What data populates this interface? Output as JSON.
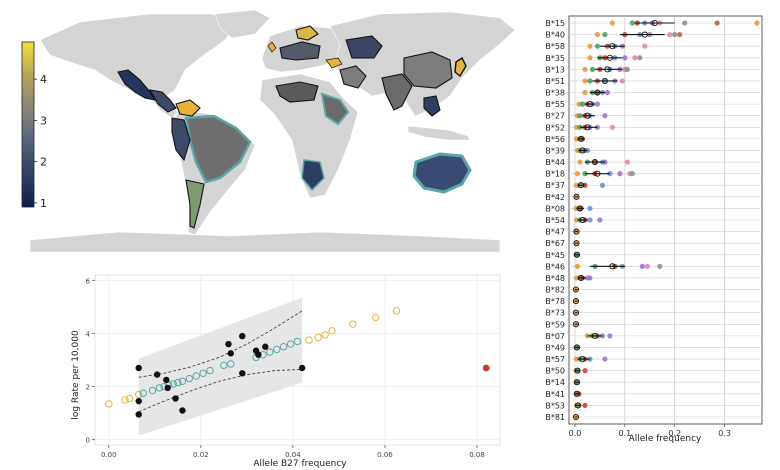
{
  "colors": {
    "land": "#d4d4d4",
    "cb_low": "#1d2f5e",
    "cb_mid": "#7d7d7d",
    "cb_high": "#f2d43c",
    "teal": "#5aa6a6",
    "orange": "#e8b23a",
    "red": "#c0392b",
    "band": "#e2e2e2"
  },
  "chart_data": [
    {
      "type": "choropleth",
      "title": "",
      "colorbar": {
        "ticks": [
          "1",
          "2",
          "3",
          "4"
        ],
        "range": [
          0.9,
          4.9
        ]
      }
    },
    {
      "type": "scatter",
      "title": "",
      "xlabel": "Allele B27 frequency",
      "ylabel": "log Rate per 10,000",
      "xlim": [
        -0.003,
        0.085
      ],
      "ylim": [
        -0.2,
        6.2
      ],
      "x_ticks": [
        0.0,
        0.02,
        0.04,
        0.06,
        0.08
      ],
      "x_tick_labels": [
        "0.00",
        "0.02",
        "0.04",
        "0.06",
        "0.08"
      ],
      "y_ticks": [
        0,
        2,
        4,
        6
      ],
      "y_tick_labels": [
        "0",
        "2",
        "4",
        "6"
      ],
      "observed": [
        [
          0.0065,
          2.7
        ],
        [
          0.0065,
          1.45
        ],
        [
          0.0065,
          0.95
        ],
        [
          0.0105,
          2.45
        ],
        [
          0.0125,
          2.25
        ],
        [
          0.0128,
          1.95
        ],
        [
          0.0145,
          1.55
        ],
        [
          0.016,
          1.1
        ],
        [
          0.026,
          3.6
        ],
        [
          0.0265,
          3.25
        ],
        [
          0.029,
          3.9
        ],
        [
          0.029,
          2.5
        ],
        [
          0.032,
          3.35
        ],
        [
          0.0325,
          3.2
        ],
        [
          0.034,
          3.5
        ],
        [
          0.042,
          2.7
        ]
      ],
      "predicted_in_range": [
        [
          0.0075,
          1.75
        ],
        [
          0.0095,
          1.85
        ],
        [
          0.011,
          1.95
        ],
        [
          0.012,
          2.0
        ],
        [
          0.013,
          2.05
        ],
        [
          0.014,
          2.1
        ],
        [
          0.015,
          2.15
        ],
        [
          0.016,
          2.2
        ],
        [
          0.0175,
          2.3
        ],
        [
          0.019,
          2.4
        ],
        [
          0.0205,
          2.5
        ],
        [
          0.022,
          2.6
        ],
        [
          0.025,
          2.8
        ],
        [
          0.0265,
          2.85
        ],
        [
          0.032,
          3.1
        ],
        [
          0.0335,
          3.2
        ],
        [
          0.035,
          3.3
        ],
        [
          0.0365,
          3.4
        ],
        [
          0.038,
          3.5
        ],
        [
          0.0395,
          3.6
        ],
        [
          0.041,
          3.7
        ]
      ],
      "predicted_out_range": [
        [
          0.0,
          1.35
        ],
        [
          0.0035,
          1.5
        ],
        [
          0.0045,
          1.55
        ],
        [
          0.0065,
          1.7
        ],
        [
          0.0435,
          3.75
        ],
        [
          0.0455,
          3.85
        ],
        [
          0.047,
          3.95
        ],
        [
          0.0485,
          4.1
        ],
        [
          0.053,
          4.35
        ],
        [
          0.058,
          4.6
        ],
        [
          0.0625,
          4.85
        ]
      ],
      "outlier": [
        0.082,
        2.7
      ],
      "fit_line": [
        [
          0.0065,
          1.7
        ],
        [
          0.042,
          3.7
        ]
      ],
      "ci_inner_upper": [
        [
          0.0065,
          2.35
        ],
        [
          0.012,
          2.5
        ],
        [
          0.018,
          2.75
        ],
        [
          0.024,
          3.1
        ],
        [
          0.03,
          3.6
        ],
        [
          0.036,
          4.2
        ],
        [
          0.042,
          4.85
        ]
      ],
      "ci_inner_lower": [
        [
          0.0065,
          1.05
        ],
        [
          0.012,
          1.45
        ],
        [
          0.018,
          1.85
        ],
        [
          0.024,
          2.2
        ],
        [
          0.03,
          2.45
        ],
        [
          0.036,
          2.6
        ],
        [
          0.042,
          2.65
        ]
      ],
      "band_upper": [
        [
          0.0065,
          3.05
        ],
        [
          0.042,
          5.35
        ]
      ],
      "band_lower": [
        [
          0.0065,
          0.15
        ],
        [
          0.042,
          2.15
        ]
      ]
    },
    {
      "type": "dot-range",
      "xlabel": "Allele frequency",
      "xlim": [
        -0.012,
        0.375
      ],
      "x_ticks": [
        0.0,
        0.1,
        0.2,
        0.3
      ],
      "x_tick_labels": [
        "0.0",
        "0.1",
        "0.2",
        "0.3"
      ],
      "palette": [
        "#e8923a",
        "#3aa05a",
        "#c0392b",
        "#5a8fd0",
        "#9b6cd0",
        "#e07fb0",
        "#8a8a8a",
        "#b05a3a"
      ],
      "rows": [
        {
          "label": "B*15",
          "mean": 0.16,
          "lo": 0.12,
          "hi": 0.2,
          "values": [
            0.075,
            0.115,
            0.125,
            0.14,
            0.155,
            0.17,
            0.22,
            0.285,
            0.365
          ]
        },
        {
          "label": "B*40",
          "mean": 0.14,
          "lo": 0.09,
          "hi": 0.18,
          "values": [
            0.045,
            0.06,
            0.1,
            0.13,
            0.15,
            0.19,
            0.2,
            0.21
          ]
        },
        {
          "label": "B*58",
          "mean": 0.075,
          "lo": 0.05,
          "hi": 0.1,
          "values": [
            0.03,
            0.045,
            0.065,
            0.08,
            0.095,
            0.14
          ]
        },
        {
          "label": "B*35",
          "mean": 0.07,
          "lo": 0.045,
          "hi": 0.095,
          "values": [
            0.03,
            0.05,
            0.06,
            0.08,
            0.1,
            0.12,
            0.13
          ]
        },
        {
          "label": "B*13",
          "mean": 0.065,
          "lo": 0.04,
          "hi": 0.095,
          "values": [
            0.02,
            0.035,
            0.05,
            0.07,
            0.09,
            0.1,
            0.105
          ]
        },
        {
          "label": "B*51",
          "mean": 0.06,
          "lo": 0.035,
          "hi": 0.085,
          "values": [
            0.02,
            0.03,
            0.045,
            0.06,
            0.08,
            0.095
          ]
        },
        {
          "label": "B*38",
          "mean": 0.045,
          "lo": 0.03,
          "hi": 0.06,
          "values": [
            0.02,
            0.035,
            0.045,
            0.055,
            0.065
          ]
        },
        {
          "label": "B*55",
          "mean": 0.03,
          "lo": 0.02,
          "hi": 0.04,
          "values": [
            0.008,
            0.015,
            0.025,
            0.035,
            0.045
          ]
        },
        {
          "label": "B*27",
          "mean": 0.025,
          "lo": 0.015,
          "hi": 0.04,
          "values": [
            0.005,
            0.01,
            0.02,
            0.03,
            0.06
          ]
        },
        {
          "label": "B*52",
          "mean": 0.025,
          "lo": 0.01,
          "hi": 0.045,
          "values": [
            0.003,
            0.01,
            0.02,
            0.03,
            0.045,
            0.075
          ]
        },
        {
          "label": "B*56",
          "mean": 0.012,
          "lo": 0.005,
          "hi": 0.02,
          "values": [
            0.003,
            0.01,
            0.015
          ]
        },
        {
          "label": "B*39",
          "mean": 0.015,
          "lo": 0.008,
          "hi": 0.025,
          "values": [
            0.005,
            0.01,
            0.02,
            0.025
          ]
        },
        {
          "label": "B*44",
          "mean": 0.04,
          "lo": 0.02,
          "hi": 0.06,
          "values": [
            0.01,
            0.025,
            0.04,
            0.055,
            0.06,
            0.105
          ]
        },
        {
          "label": "B*18",
          "mean": 0.045,
          "lo": 0.02,
          "hi": 0.07,
          "values": [
            0.005,
            0.02,
            0.04,
            0.07,
            0.09,
            0.11,
            0.115
          ]
        },
        {
          "label": "B*37",
          "mean": 0.012,
          "lo": 0.005,
          "hi": 0.02,
          "values": [
            0.003,
            0.01,
            0.02,
            0.055
          ]
        },
        {
          "label": "B*42",
          "mean": 0.003,
          "lo": 0.0,
          "hi": 0.006,
          "values": [
            0.002
          ]
        },
        {
          "label": "B*08",
          "mean": 0.01,
          "lo": 0.003,
          "hi": 0.018,
          "values": [
            0.002,
            0.008,
            0.012,
            0.03
          ]
        },
        {
          "label": "B*54",
          "mean": 0.015,
          "lo": 0.005,
          "hi": 0.025,
          "values": [
            0.003,
            0.01,
            0.02,
            0.03,
            0.05
          ]
        },
        {
          "label": "B*47",
          "mean": 0.003,
          "lo": 0.0,
          "hi": 0.006,
          "values": [
            0.002
          ]
        },
        {
          "label": "B*67",
          "mean": 0.003,
          "lo": 0.0,
          "hi": 0.006,
          "values": [
            0.002
          ]
        },
        {
          "label": "B*45",
          "mean": 0.004,
          "lo": 0.0,
          "hi": 0.008,
          "values": [
            0.002,
            0.004
          ]
        },
        {
          "label": "B*46",
          "mean": 0.075,
          "lo": 0.03,
          "hi": 0.1,
          "values": [
            0.005,
            0.04,
            0.08,
            0.095,
            0.135,
            0.145,
            0.17
          ]
        },
        {
          "label": "B*48",
          "mean": 0.012,
          "lo": 0.005,
          "hi": 0.022,
          "values": [
            0.003,
            0.01,
            0.015,
            0.025,
            0.03
          ]
        },
        {
          "label": "B*82",
          "mean": 0.002,
          "lo": 0.0,
          "hi": 0.005,
          "values": [
            0.001
          ]
        },
        {
          "label": "B*78",
          "mean": 0.002,
          "lo": 0.0,
          "hi": 0.005,
          "values": [
            0.001
          ]
        },
        {
          "label": "B*73",
          "mean": 0.002,
          "lo": 0.0,
          "hi": 0.005,
          "values": [
            0.001
          ]
        },
        {
          "label": "B*59",
          "mean": 0.002,
          "lo": 0.0,
          "hi": 0.005,
          "values": [
            0.001
          ]
        },
        {
          "label": "B*07",
          "mean": 0.04,
          "lo": 0.025,
          "hi": 0.055,
          "values": [
            0.025,
            0.035,
            0.045,
            0.055,
            0.07
          ]
        },
        {
          "label": "B*49",
          "mean": 0.004,
          "lo": 0.0,
          "hi": 0.008,
          "values": [
            0.002,
            0.005
          ]
        },
        {
          "label": "B*57",
          "mean": 0.015,
          "lo": 0.005,
          "hi": 0.03,
          "values": [
            0.003,
            0.01,
            0.02,
            0.03,
            0.06
          ]
        },
        {
          "label": "B*50",
          "mean": 0.005,
          "lo": 0.0,
          "hi": 0.01,
          "values": [
            0.002,
            0.005,
            0.02
          ]
        },
        {
          "label": "B*14",
          "mean": 0.004,
          "lo": 0.0,
          "hi": 0.008,
          "values": [
            0.002,
            0.005
          ]
        },
        {
          "label": "B*41",
          "mean": 0.004,
          "lo": 0.0,
          "hi": 0.008,
          "values": [
            0.002,
            0.005,
            0.008
          ]
        },
        {
          "label": "B*53",
          "mean": 0.006,
          "lo": 0.0,
          "hi": 0.012,
          "values": [
            0.003,
            0.008,
            0.02
          ]
        },
        {
          "label": "B*81",
          "mean": 0.002,
          "lo": 0.0,
          "hi": 0.005,
          "values": [
            0.001
          ]
        }
      ]
    }
  ]
}
